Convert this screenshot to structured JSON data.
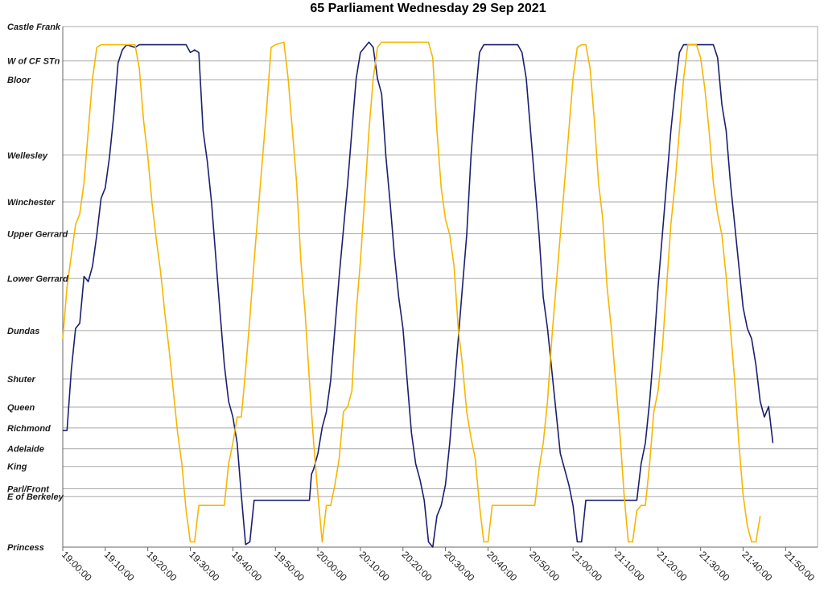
{
  "title": "65 Parliament Wednesday 29 Sep 2021",
  "chart_data": {
    "type": "line",
    "title": "65 Parliament Wednesday 29 Sep 2021",
    "x_ticks": [
      "19:00:00",
      "19:10:00",
      "19:20:00",
      "19:30:00",
      "19:40:00",
      "19:50:00",
      "20:00:00",
      "20:10:00",
      "20:20:00",
      "20:30:00",
      "20:40:00",
      "20:50:00",
      "21:00:00",
      "21:10:00",
      "21:20:00",
      "21:30:00",
      "21:40:00",
      "21:50:00"
    ],
    "xlim": [
      "19:00:00",
      "21:57:30"
    ],
    "stops": [
      {
        "name": "Castle Frank",
        "pos": 0
      },
      {
        "name": "W of CF STn",
        "pos": 0.066
      },
      {
        "name": "Bloor",
        "pos": 0.102
      },
      {
        "name": "Wellesley",
        "pos": 0.247
      },
      {
        "name": "Winchester",
        "pos": 0.337
      },
      {
        "name": "Upper Gerrard",
        "pos": 0.398
      },
      {
        "name": "Lower Gerrard",
        "pos": 0.484
      },
      {
        "name": "Dundas",
        "pos": 0.584
      },
      {
        "name": "Shuter",
        "pos": 0.677
      },
      {
        "name": "Queen",
        "pos": 0.731
      },
      {
        "name": "Richmond",
        "pos": 0.771
      },
      {
        "name": "Adelaide",
        "pos": 0.811
      },
      {
        "name": "King",
        "pos": 0.845
      },
      {
        "name": "Parl/Front",
        "pos": 0.888
      },
      {
        "name": "E of Berkeley",
        "pos": 0.903
      },
      {
        "name": "Princess",
        "pos": 1
      }
    ],
    "grid": true,
    "series": [
      {
        "color": "#1a1f6e",
        "points": [
          [
            "19:00:00",
            0.776
          ],
          [
            "19:01:00",
            0.776
          ],
          [
            "19:02:00",
            0.66
          ],
          [
            "19:03:00",
            0.58
          ],
          [
            "19:04:00",
            0.57
          ],
          [
            "19:05:00",
            0.48
          ],
          [
            "19:06:00",
            0.49
          ],
          [
            "19:07:00",
            0.46
          ],
          [
            "19:08:00",
            0.4
          ],
          [
            "19:09:00",
            0.33
          ],
          [
            "19:10:00",
            0.31
          ],
          [
            "19:11:00",
            0.25
          ],
          [
            "19:12:00",
            0.17
          ],
          [
            "19:13:00",
            0.07
          ],
          [
            "19:14:00",
            0.045
          ],
          [
            "19:15:00",
            0.035
          ],
          [
            "19:17:00",
            0.04
          ],
          [
            "19:18:00",
            0.035
          ],
          [
            "19:29:00",
            0.035
          ],
          [
            "19:30:00",
            0.05
          ],
          [
            "19:31:00",
            0.045
          ],
          [
            "19:32:00",
            0.05
          ],
          [
            "19:33:00",
            0.2
          ],
          [
            "19:34:00",
            0.26
          ],
          [
            "19:35:00",
            0.34
          ],
          [
            "19:37:00",
            0.55
          ],
          [
            "19:38:00",
            0.65
          ],
          [
            "19:39:00",
            0.72
          ],
          [
            "19:40:00",
            0.75
          ],
          [
            "19:41:00",
            0.8
          ],
          [
            "19:42:00",
            0.9
          ],
          [
            "19:43:00",
            0.995
          ],
          [
            "19:44:00",
            0.99
          ],
          [
            "19:45:00",
            0.91
          ],
          [
            "19:47:00",
            0.91
          ],
          [
            "19:58:00",
            0.91
          ],
          [
            "19:58:30",
            0.86
          ],
          [
            "19:59:00",
            0.85
          ],
          [
            "20:00:00",
            0.82
          ],
          [
            "20:01:00",
            0.77
          ],
          [
            "20:02:00",
            0.74
          ],
          [
            "20:03:00",
            0.68
          ],
          [
            "20:04:00",
            0.58
          ],
          [
            "20:05:00",
            0.48
          ],
          [
            "20:06:00",
            0.39
          ],
          [
            "20:07:00",
            0.3
          ],
          [
            "20:08:00",
            0.2
          ],
          [
            "20:09:00",
            0.1
          ],
          [
            "20:10:00",
            0.05
          ],
          [
            "20:11:00",
            0.04
          ],
          [
            "20:12:00",
            0.03
          ],
          [
            "20:13:00",
            0.04
          ],
          [
            "20:14:00",
            0.1
          ],
          [
            "20:15:00",
            0.13
          ],
          [
            "20:16:00",
            0.25
          ],
          [
            "20:17:00",
            0.34
          ],
          [
            "20:18:00",
            0.44
          ],
          [
            "20:19:00",
            0.52
          ],
          [
            "20:20:00",
            0.58
          ],
          [
            "20:21:00",
            0.68
          ],
          [
            "20:22:00",
            0.78
          ],
          [
            "20:23:00",
            0.84
          ],
          [
            "20:24:00",
            0.87
          ],
          [
            "20:25:00",
            0.91
          ],
          [
            "20:26:00",
            0.99
          ],
          [
            "20:27:00",
            1.0
          ],
          [
            "20:28:00",
            0.94
          ],
          [
            "20:29:00",
            0.92
          ],
          [
            "20:30:00",
            0.88
          ],
          [
            "20:31:00",
            0.8
          ],
          [
            "20:32:00",
            0.7
          ],
          [
            "20:33:00",
            0.6
          ],
          [
            "20:34:00",
            0.5
          ],
          [
            "20:35:00",
            0.4
          ],
          [
            "20:36:00",
            0.25
          ],
          [
            "20:37:00",
            0.14
          ],
          [
            "20:38:00",
            0.05
          ],
          [
            "20:39:00",
            0.035
          ],
          [
            "20:47:00",
            0.035
          ],
          [
            "20:48:00",
            0.05
          ],
          [
            "20:49:00",
            0.1
          ],
          [
            "20:50:00",
            0.2
          ],
          [
            "20:51:00",
            0.3
          ],
          [
            "20:52:00",
            0.4
          ],
          [
            "20:53:00",
            0.52
          ],
          [
            "20:54:00",
            0.58
          ],
          [
            "20:55:00",
            0.66
          ],
          [
            "20:56:00",
            0.74
          ],
          [
            "20:57:00",
            0.82
          ],
          [
            "20:58:00",
            0.85
          ],
          [
            "20:59:00",
            0.88
          ],
          [
            "21:00:00",
            0.92
          ],
          [
            "21:01:00",
            0.99
          ],
          [
            "21:02:00",
            0.99
          ],
          [
            "21:03:00",
            0.91
          ],
          [
            "21:05:00",
            0.91
          ],
          [
            "21:15:00",
            0.91
          ],
          [
            "21:16:00",
            0.84
          ],
          [
            "21:17:00",
            0.8
          ],
          [
            "21:18:00",
            0.72
          ],
          [
            "21:19:00",
            0.62
          ],
          [
            "21:20:00",
            0.5
          ],
          [
            "21:21:00",
            0.4
          ],
          [
            "21:22:00",
            0.3
          ],
          [
            "21:23:00",
            0.2
          ],
          [
            "21:24:00",
            0.12
          ],
          [
            "21:25:00",
            0.05
          ],
          [
            "21:26:00",
            0.035
          ],
          [
            "21:33:00",
            0.035
          ],
          [
            "21:34:00",
            0.06
          ],
          [
            "21:35:00",
            0.15
          ],
          [
            "21:36:00",
            0.2
          ],
          [
            "21:37:00",
            0.3
          ],
          [
            "21:38:00",
            0.38
          ],
          [
            "21:39:00",
            0.46
          ],
          [
            "21:40:00",
            0.54
          ],
          [
            "21:41:00",
            0.58
          ],
          [
            "21:42:00",
            0.6
          ],
          [
            "21:43:00",
            0.65
          ],
          [
            "21:44:00",
            0.72
          ],
          [
            "21:45:00",
            0.75
          ],
          [
            "21:46:00",
            0.73
          ],
          [
            "21:47:00",
            0.8
          ]
        ]
      },
      {
        "color": "#f5b700",
        "points": [
          [
            "19:00:00",
            0.6
          ],
          [
            "19:01:00",
            0.5
          ],
          [
            "19:02:00",
            0.44
          ],
          [
            "19:03:00",
            0.38
          ],
          [
            "19:04:00",
            0.36
          ],
          [
            "19:05:00",
            0.3
          ],
          [
            "19:06:00",
            0.2
          ],
          [
            "19:07:00",
            0.1
          ],
          [
            "19:08:00",
            0.04
          ],
          [
            "19:09:00",
            0.035
          ],
          [
            "19:17:00",
            0.035
          ],
          [
            "19:18:00",
            0.08
          ],
          [
            "19:19:00",
            0.18
          ],
          [
            "19:20:00",
            0.25
          ],
          [
            "19:21:00",
            0.34
          ],
          [
            "19:22:00",
            0.41
          ],
          [
            "19:23:00",
            0.47
          ],
          [
            "19:24:00",
            0.55
          ],
          [
            "19:25:00",
            0.62
          ],
          [
            "19:26:00",
            0.7
          ],
          [
            "19:27:00",
            0.78
          ],
          [
            "19:28:00",
            0.84
          ],
          [
            "19:29:00",
            0.93
          ],
          [
            "19:30:00",
            0.99
          ],
          [
            "19:31:00",
            0.99
          ],
          [
            "19:32:00",
            0.92
          ],
          [
            "19:33:00",
            0.92
          ],
          [
            "19:34:00",
            0.92
          ],
          [
            "19:38:00",
            0.92
          ],
          [
            "19:39:00",
            0.84
          ],
          [
            "19:40:00",
            0.8
          ],
          [
            "19:41:00",
            0.75
          ],
          [
            "19:42:00",
            0.75
          ],
          [
            "19:43:00",
            0.66
          ],
          [
            "19:44:00",
            0.56
          ],
          [
            "19:45:00",
            0.45
          ],
          [
            "19:46:00",
            0.35
          ],
          [
            "19:47:00",
            0.25
          ],
          [
            "19:48:00",
            0.15
          ],
          [
            "19:49:00",
            0.04
          ],
          [
            "19:50:00",
            0.035
          ],
          [
            "19:52:00",
            0.03
          ],
          [
            "19:53:00",
            0.1
          ],
          [
            "19:54:00",
            0.2
          ],
          [
            "19:55:00",
            0.3
          ],
          [
            "19:56:00",
            0.45
          ],
          [
            "19:57:00",
            0.55
          ],
          [
            "19:58:00",
            0.68
          ],
          [
            "19:59:00",
            0.8
          ],
          [
            "20:00:00",
            0.9
          ],
          [
            "20:01:00",
            0.99
          ],
          [
            "20:02:00",
            0.92
          ],
          [
            "20:03:00",
            0.92
          ],
          [
            "20:04:00",
            0.88
          ],
          [
            "20:05:00",
            0.83
          ],
          [
            "20:06:00",
            0.74
          ],
          [
            "20:07:00",
            0.73
          ],
          [
            "20:08:00",
            0.7
          ],
          [
            "20:09:00",
            0.55
          ],
          [
            "20:10:00",
            0.45
          ],
          [
            "20:11:00",
            0.33
          ],
          [
            "20:12:00",
            0.2
          ],
          [
            "20:13:00",
            0.1
          ],
          [
            "20:14:00",
            0.04
          ],
          [
            "20:15:00",
            0.03
          ],
          [
            "20:26:00",
            0.03
          ],
          [
            "20:27:00",
            0.06
          ],
          [
            "20:28:00",
            0.2
          ],
          [
            "20:29:00",
            0.31
          ],
          [
            "20:30:00",
            0.37
          ],
          [
            "20:31:00",
            0.4
          ],
          [
            "20:32:00",
            0.46
          ],
          [
            "20:33:00",
            0.58
          ],
          [
            "20:34:00",
            0.65
          ],
          [
            "20:35:00",
            0.74
          ],
          [
            "20:36:00",
            0.79
          ],
          [
            "20:37:00",
            0.83
          ],
          [
            "20:38:00",
            0.92
          ],
          [
            "20:39:00",
            0.99
          ],
          [
            "20:40:00",
            0.99
          ],
          [
            "20:41:00",
            0.92
          ],
          [
            "20:42:00",
            0.92
          ],
          [
            "20:51:00",
            0.92
          ],
          [
            "20:52:00",
            0.85
          ],
          [
            "20:53:00",
            0.8
          ],
          [
            "20:54:00",
            0.72
          ],
          [
            "20:55:00",
            0.6
          ],
          [
            "20:56:00",
            0.5
          ],
          [
            "20:57:00",
            0.4
          ],
          [
            "20:58:00",
            0.3
          ],
          [
            "20:59:00",
            0.2
          ],
          [
            "21:00:00",
            0.1
          ],
          [
            "21:01:00",
            0.04
          ],
          [
            "21:02:00",
            0.035
          ],
          [
            "21:03:00",
            0.035
          ],
          [
            "21:04:00",
            0.08
          ],
          [
            "21:05:00",
            0.18
          ],
          [
            "21:06:00",
            0.3
          ],
          [
            "21:07:00",
            0.37
          ],
          [
            "21:08:00",
            0.5
          ],
          [
            "21:09:00",
            0.58
          ],
          [
            "21:10:00",
            0.68
          ],
          [
            "21:11:00",
            0.78
          ],
          [
            "21:12:00",
            0.9
          ],
          [
            "21:13:00",
            0.99
          ],
          [
            "21:14:00",
            0.99
          ],
          [
            "21:15:00",
            0.93
          ],
          [
            "21:16:00",
            0.92
          ],
          [
            "21:17:00",
            0.92
          ],
          [
            "21:18:00",
            0.84
          ],
          [
            "21:19:00",
            0.74
          ],
          [
            "21:20:00",
            0.7
          ],
          [
            "21:21:00",
            0.62
          ],
          [
            "21:22:00",
            0.5
          ],
          [
            "21:23:00",
            0.38
          ],
          [
            "21:24:00",
            0.3
          ],
          [
            "21:25:00",
            0.2
          ],
          [
            "21:26:00",
            0.1
          ],
          [
            "21:27:00",
            0.035
          ],
          [
            "21:29:00",
            0.035
          ],
          [
            "21:30:00",
            0.06
          ],
          [
            "21:31:00",
            0.12
          ],
          [
            "21:32:00",
            0.2
          ],
          [
            "21:33:00",
            0.3
          ],
          [
            "21:34:00",
            0.36
          ],
          [
            "21:35:00",
            0.4
          ],
          [
            "21:36:00",
            0.48
          ],
          [
            "21:37:00",
            0.58
          ],
          [
            "21:38:00",
            0.68
          ],
          [
            "21:39:00",
            0.8
          ],
          [
            "21:40:00",
            0.9
          ],
          [
            "21:41:00",
            0.96
          ],
          [
            "21:42:00",
            0.99
          ],
          [
            "21:43:00",
            0.99
          ],
          [
            "21:44:00",
            0.94
          ]
        ]
      }
    ]
  }
}
